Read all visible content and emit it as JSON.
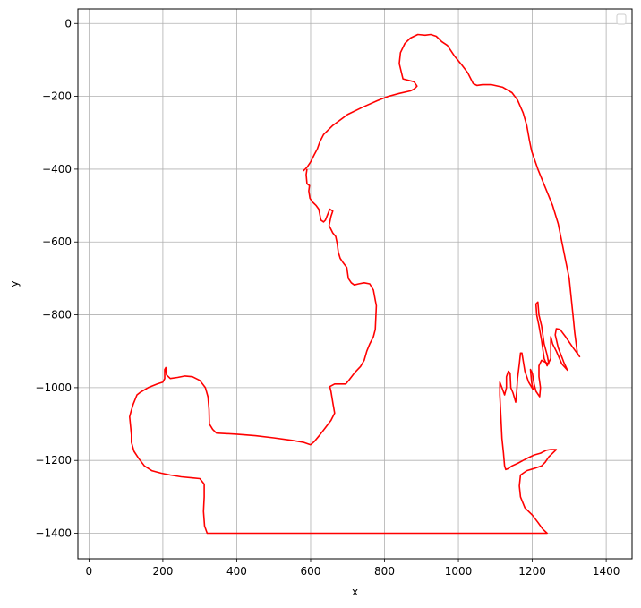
{
  "chart_data": {
    "type": "line",
    "title": "",
    "xlabel": "x",
    "ylabel": "y",
    "xlim": [
      -30,
      1470
    ],
    "ylim": [
      -1470,
      40
    ],
    "grid": true,
    "legend_placement": "top-right",
    "xticks": [
      0,
      200,
      400,
      600,
      800,
      1000,
      1200,
      1400
    ],
    "xtick_labels": [
      "0",
      "200",
      "400",
      "600",
      "800",
      "1000",
      "1200",
      "1400"
    ],
    "yticks": [
      0,
      -200,
      -400,
      -600,
      -800,
      -1000,
      -1200,
      -1400
    ],
    "ytick_labels": [
      "0",
      "−200",
      "−400",
      "−600",
      "−800",
      "−1000",
      "−1200",
      "−1400"
    ],
    "series": [
      {
        "color": "#ff0000",
        "points": [
          [
            580,
            -405
          ],
          [
            590,
            -395
          ],
          [
            600,
            -380
          ],
          [
            610,
            -360
          ],
          [
            618,
            -345
          ],
          [
            625,
            -325
          ],
          [
            635,
            -305
          ],
          [
            660,
            -280
          ],
          [
            700,
            -250
          ],
          [
            740,
            -230
          ],
          [
            780,
            -212
          ],
          [
            810,
            -200
          ],
          [
            840,
            -192
          ],
          [
            870,
            -185
          ],
          [
            880,
            -180
          ],
          [
            888,
            -172
          ],
          [
            880,
            -160
          ],
          [
            850,
            -152
          ],
          [
            840,
            -110
          ],
          [
            843,
            -80
          ],
          [
            855,
            -55
          ],
          [
            870,
            -40
          ],
          [
            890,
            -30
          ],
          [
            910,
            -32
          ],
          [
            925,
            -30
          ],
          [
            940,
            -35
          ],
          [
            955,
            -50
          ],
          [
            970,
            -60
          ],
          [
            990,
            -90
          ],
          [
            1010,
            -115
          ],
          [
            1025,
            -135
          ],
          [
            1040,
            -165
          ],
          [
            1050,
            -170
          ],
          [
            1065,
            -168
          ],
          [
            1090,
            -168
          ],
          [
            1120,
            -175
          ],
          [
            1145,
            -190
          ],
          [
            1160,
            -210
          ],
          [
            1175,
            -245
          ],
          [
            1185,
            -280
          ],
          [
            1192,
            -320
          ],
          [
            1198,
            -350
          ],
          [
            1215,
            -400
          ],
          [
            1235,
            -450
          ],
          [
            1255,
            -500
          ],
          [
            1270,
            -550
          ],
          [
            1280,
            -600
          ],
          [
            1290,
            -650
          ],
          [
            1300,
            -700
          ],
          [
            1305,
            -750
          ],
          [
            1310,
            -800
          ],
          [
            1315,
            -850
          ],
          [
            1322,
            -905
          ],
          [
            1328,
            -915
          ],
          [
            1310,
            -890
          ],
          [
            1290,
            -860
          ],
          [
            1275,
            -840
          ],
          [
            1265,
            -838
          ],
          [
            1262,
            -855
          ],
          [
            1270,
            -890
          ],
          [
            1285,
            -930
          ],
          [
            1295,
            -952
          ],
          [
            1280,
            -935
          ],
          [
            1265,
            -900
          ],
          [
            1255,
            -880
          ],
          [
            1250,
            -860
          ],
          [
            1250,
            -920
          ],
          [
            1240,
            -940
          ],
          [
            1232,
            -920
          ],
          [
            1225,
            -870
          ],
          [
            1218,
            -830
          ],
          [
            1212,
            -800
          ],
          [
            1210,
            -770
          ],
          [
            1215,
            -765
          ],
          [
            1218,
            -800
          ],
          [
            1225,
            -830
          ],
          [
            1232,
            -880
          ],
          [
            1240,
            -910
          ],
          [
            1245,
            -935
          ],
          [
            1225,
            -925
          ],
          [
            1218,
            -940
          ],
          [
            1218,
            -970
          ],
          [
            1222,
            -1000
          ],
          [
            1220,
            -1025
          ],
          [
            1210,
            -1010
          ],
          [
            1205,
            -990
          ],
          [
            1200,
            -960
          ],
          [
            1195,
            -950
          ],
          [
            1198,
            -985
          ],
          [
            1202,
            -1005
          ],
          [
            1190,
            -985
          ],
          [
            1180,
            -955
          ],
          [
            1175,
            -925
          ],
          [
            1172,
            -905
          ],
          [
            1168,
            -905
          ],
          [
            1165,
            -935
          ],
          [
            1160,
            -975
          ],
          [
            1158,
            -1010
          ],
          [
            1155,
            -1040
          ],
          [
            1148,
            -1015
          ],
          [
            1142,
            -1000
          ],
          [
            1140,
            -960
          ],
          [
            1135,
            -955
          ],
          [
            1130,
            -970
          ],
          [
            1130,
            -1000
          ],
          [
            1125,
            -1020
          ],
          [
            1118,
            -1000
          ],
          [
            1112,
            -985
          ],
          [
            1112,
            -1020
          ],
          [
            1115,
            -1080
          ],
          [
            1118,
            -1140
          ],
          [
            1122,
            -1180
          ],
          [
            1125,
            -1215
          ],
          [
            1128,
            -1225
          ],
          [
            1135,
            -1222
          ],
          [
            1145,
            -1215
          ],
          [
            1160,
            -1208
          ],
          [
            1175,
            -1200
          ],
          [
            1190,
            -1192
          ],
          [
            1205,
            -1185
          ],
          [
            1222,
            -1180
          ],
          [
            1238,
            -1172
          ],
          [
            1250,
            -1170
          ],
          [
            1265,
            -1170
          ],
          [
            1255,
            -1180
          ],
          [
            1245,
            -1190
          ],
          [
            1235,
            -1205
          ],
          [
            1225,
            -1215
          ],
          [
            1205,
            -1222
          ],
          [
            1185,
            -1228
          ],
          [
            1168,
            -1240
          ],
          [
            1165,
            -1270
          ],
          [
            1168,
            -1300
          ],
          [
            1180,
            -1330
          ],
          [
            1200,
            -1350
          ],
          [
            1215,
            -1370
          ],
          [
            1228,
            -1388
          ],
          [
            1240,
            -1400
          ],
          [
            320,
            -1400
          ],
          [
            313,
            -1380
          ],
          [
            310,
            -1340
          ],
          [
            312,
            -1300
          ],
          [
            312,
            -1265
          ],
          [
            300,
            -1250
          ],
          [
            280,
            -1248
          ],
          [
            250,
            -1245
          ],
          [
            220,
            -1240
          ],
          [
            195,
            -1235
          ],
          [
            170,
            -1228
          ],
          [
            150,
            -1215
          ],
          [
            135,
            -1195
          ],
          [
            122,
            -1175
          ],
          [
            115,
            -1150
          ],
          [
            115,
            -1130
          ],
          [
            112,
            -1100
          ],
          [
            110,
            -1080
          ],
          [
            114,
            -1065
          ],
          [
            120,
            -1045
          ],
          [
            130,
            -1020
          ],
          [
            140,
            -1012
          ],
          [
            160,
            -1000
          ],
          [
            185,
            -990
          ],
          [
            200,
            -985
          ],
          [
            205,
            -975
          ],
          [
            205,
            -950
          ],
          [
            208,
            -945
          ],
          [
            210,
            -965
          ],
          [
            220,
            -975
          ],
          [
            240,
            -972
          ],
          [
            260,
            -968
          ],
          [
            280,
            -970
          ],
          [
            300,
            -980
          ],
          [
            315,
            -1000
          ],
          [
            322,
            -1025
          ],
          [
            325,
            -1060
          ],
          [
            326,
            -1100
          ],
          [
            335,
            -1115
          ],
          [
            345,
            -1125
          ],
          [
            400,
            -1128
          ],
          [
            450,
            -1132
          ],
          [
            500,
            -1138
          ],
          [
            550,
            -1145
          ],
          [
            580,
            -1150
          ],
          [
            600,
            -1157
          ],
          [
            610,
            -1148
          ],
          [
            625,
            -1130
          ],
          [
            640,
            -1110
          ],
          [
            655,
            -1090
          ],
          [
            665,
            -1070
          ],
          [
            660,
            -1040
          ],
          [
            655,
            -1010
          ],
          [
            652,
            -997
          ],
          [
            665,
            -990
          ],
          [
            695,
            -990
          ],
          [
            705,
            -978
          ],
          [
            720,
            -958
          ],
          [
            735,
            -942
          ],
          [
            745,
            -925
          ],
          [
            752,
            -900
          ],
          [
            760,
            -880
          ],
          [
            770,
            -860
          ],
          [
            775,
            -840
          ],
          [
            778,
            -775
          ],
          [
            775,
            -760
          ],
          [
            770,
            -732
          ],
          [
            760,
            -715
          ],
          [
            745,
            -712
          ],
          [
            730,
            -715
          ],
          [
            718,
            -718
          ],
          [
            710,
            -712
          ],
          [
            702,
            -700
          ],
          [
            698,
            -670
          ],
          [
            688,
            -657
          ],
          [
            680,
            -645
          ],
          [
            675,
            -628
          ],
          [
            672,
            -605
          ],
          [
            668,
            -585
          ],
          [
            660,
            -575
          ],
          [
            650,
            -555
          ],
          [
            655,
            -530
          ],
          [
            660,
            -515
          ],
          [
            652,
            -510
          ],
          [
            640,
            -540
          ],
          [
            635,
            -545
          ],
          [
            628,
            -540
          ],
          [
            625,
            -525
          ],
          [
            622,
            -510
          ],
          [
            615,
            -500
          ],
          [
            605,
            -490
          ],
          [
            598,
            -480
          ],
          [
            595,
            -460
          ],
          [
            597,
            -445
          ],
          [
            590,
            -440
          ],
          [
            588,
            -415
          ],
          [
            590,
            -400
          ]
        ]
      }
    ]
  }
}
